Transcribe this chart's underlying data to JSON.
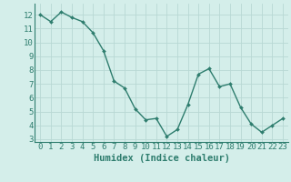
{
  "x": [
    0,
    1,
    2,
    3,
    4,
    5,
    6,
    7,
    8,
    9,
    10,
    11,
    12,
    13,
    14,
    15,
    16,
    17,
    18,
    19,
    20,
    21,
    22,
    23
  ],
  "y": [
    12.0,
    11.5,
    12.2,
    11.8,
    11.5,
    10.7,
    9.4,
    7.2,
    6.7,
    5.2,
    4.4,
    4.5,
    3.2,
    3.7,
    5.5,
    7.7,
    8.1,
    6.8,
    7.0,
    5.3,
    4.1,
    3.5,
    4.0,
    4.5
  ],
  "xlabel": "Humidex (Indice chaleur)",
  "line_color": "#2e7d6e",
  "marker_color": "#2e7d6e",
  "bg_color": "#d4eeea",
  "grid_color": "#b8d8d4",
  "ylim": [
    2.8,
    12.8
  ],
  "xlim": [
    -0.5,
    23.5
  ],
  "yticks": [
    3,
    4,
    5,
    6,
    7,
    8,
    9,
    10,
    11,
    12
  ],
  "xticks": [
    0,
    1,
    2,
    3,
    4,
    5,
    6,
    7,
    8,
    9,
    10,
    11,
    12,
    13,
    14,
    15,
    16,
    17,
    18,
    19,
    20,
    21,
    22,
    23
  ],
  "tick_fontsize": 6.5,
  "xlabel_fontsize": 7.5
}
